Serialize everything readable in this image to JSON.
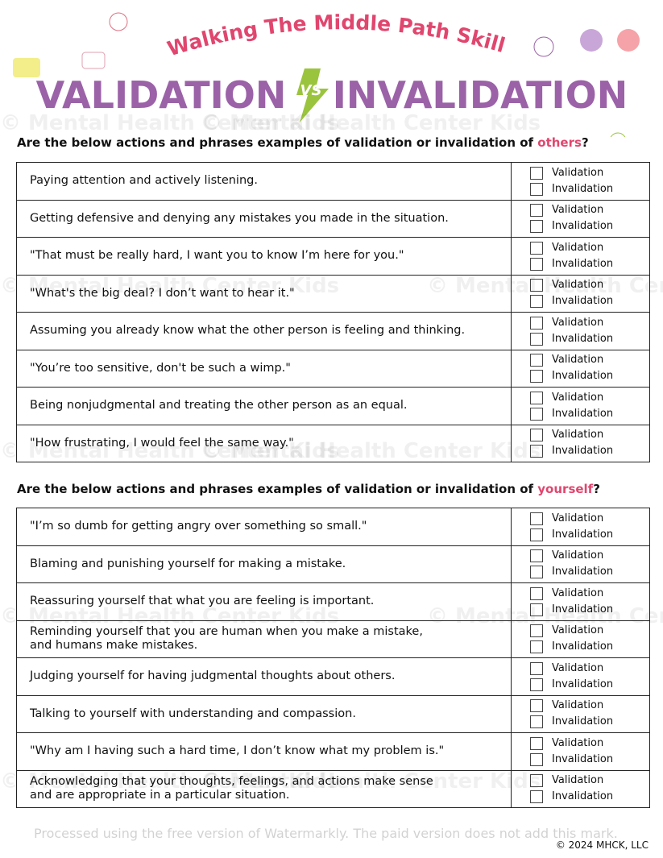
{
  "header": {
    "subtitle": "Walking The Middle Path Skill",
    "title_left": "VALIDATION",
    "vs": "VS",
    "title_right": "INVALIDATION"
  },
  "options": [
    "Validation",
    "Invalidation"
  ],
  "sections": [
    {
      "question": {
        "text": "Are the below actions and phrases examples of validation or invalidation of ",
        "highlight": "others",
        "end": "?"
      },
      "rows": [
        "Paying attention and actively listening.",
        "Getting defensive and denying any mistakes you made in the situation.",
        "\"That must be really hard, I want you to know I’m here for you.\"",
        "\"What's the big deal? I don’t want to hear it.\"",
        "Assuming you already know what the other person is feeling and thinking.",
        "\"You’re too sensitive, don't be such a wimp.\"",
        "Being nonjudgmental and treating the other person as an equal.",
        "\"How frustrating, I would feel the same way.\""
      ]
    },
    {
      "question": {
        "text": "Are the below actions and phrases examples of validation or invalidation of ",
        "highlight": "yourself",
        "end": "?"
      },
      "rows": [
        "\"I’m so dumb for getting angry over something so small.\"",
        "Blaming and punishing yourself for making a mistake.",
        "Reassuring yourself that what you are feeling is important.",
        "Reminding yourself that you are human when you make a mistake,\nand humans make mistakes.",
        "Judging yourself for having judgmental thoughts about others.",
        "Talking to yourself with understanding and compassion.",
        "\"Why am I having such a hard time, I don’t know what my problem is.\"",
        "Acknowledging that your thoughts, feelings, and actions make sense\nand are appropriate in a particular situation."
      ]
    }
  ],
  "watermark": "© Mental Health Center Kids",
  "processed_note": "Processed using the free version of Watermarkly. The paid version does not add this mark.",
  "footer": "© 2024 MHCK, LLC"
}
